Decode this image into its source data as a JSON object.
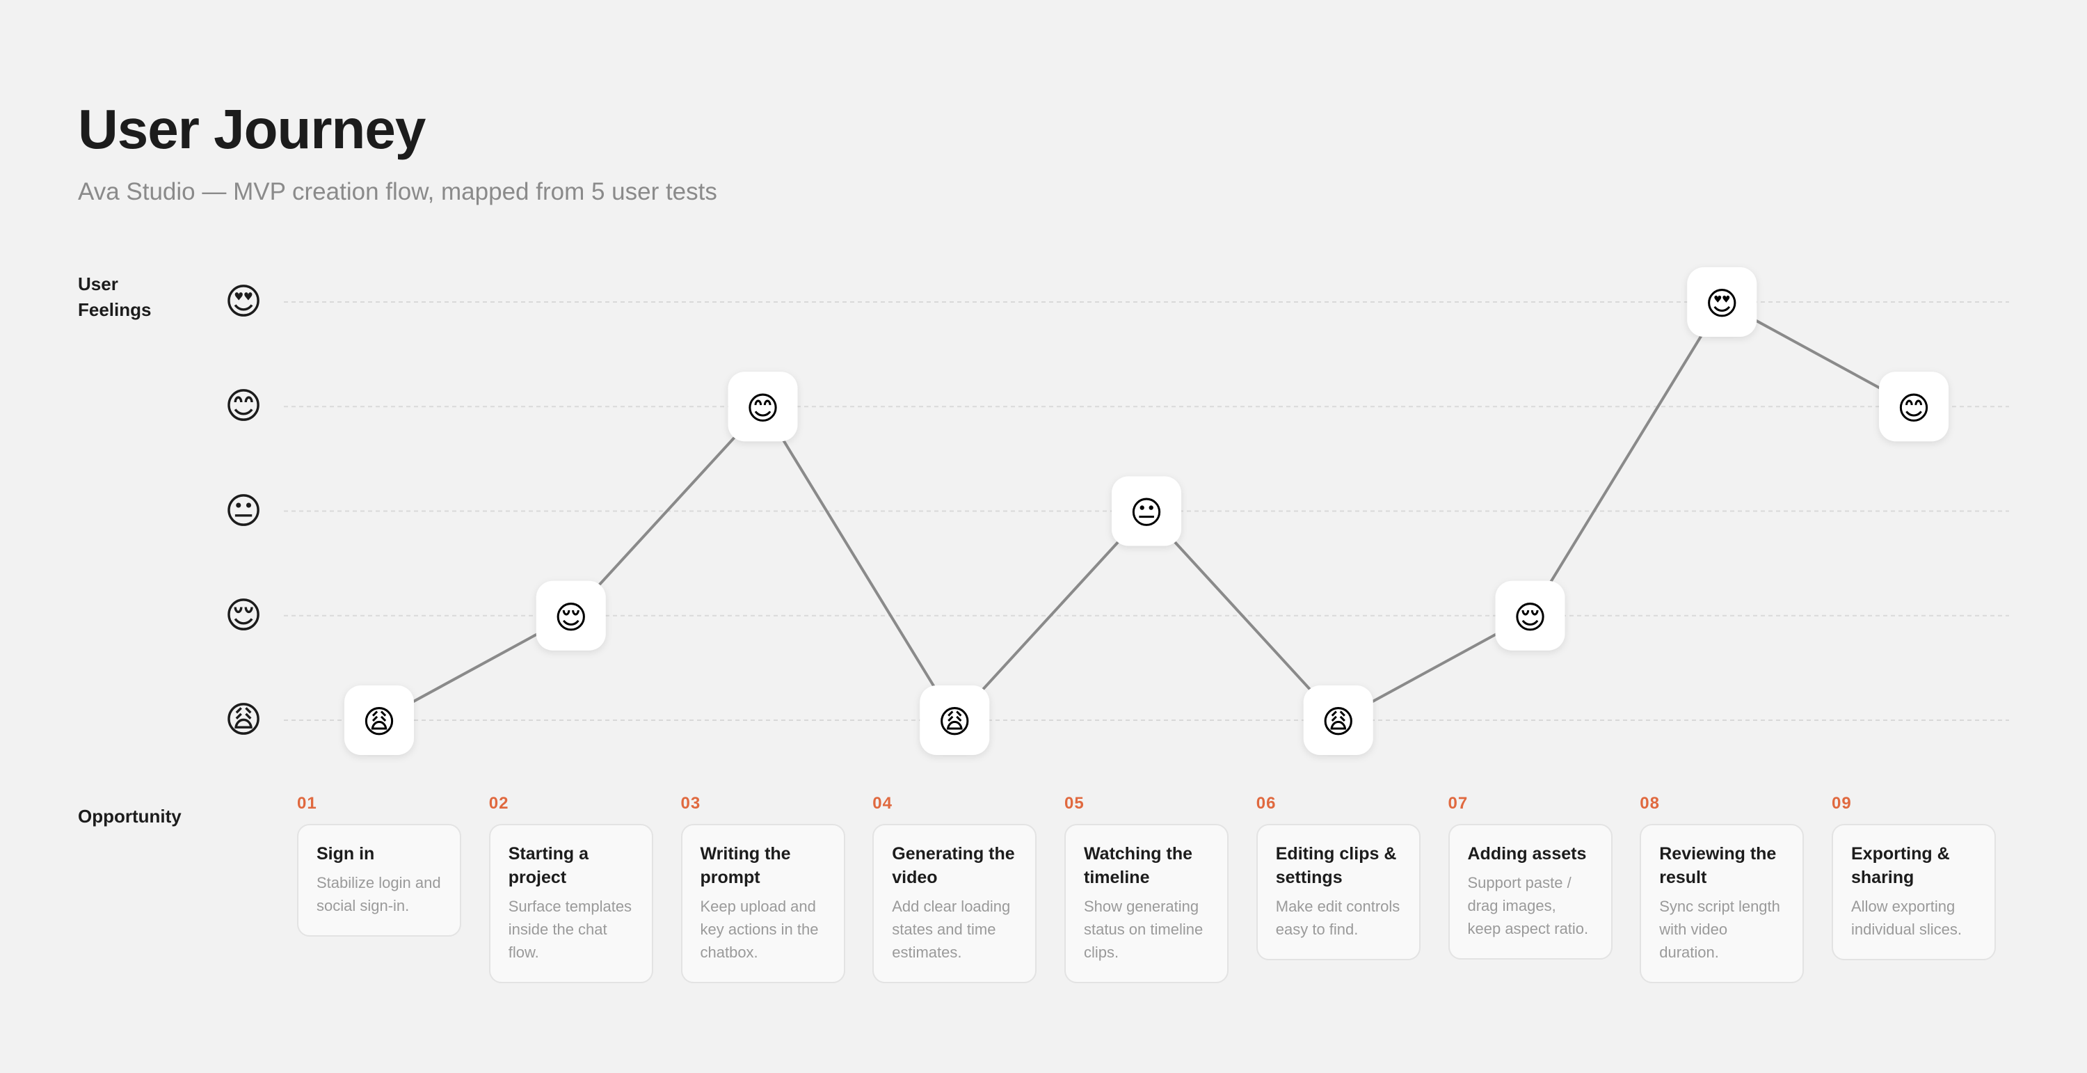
{
  "header": {
    "title": "User Journey",
    "subtitle": "Ava Studio — MVP creation flow, mapped from 5 user tests"
  },
  "labels": {
    "feelings": "User Feelings",
    "opportunity": "Opportunity"
  },
  "feeling_scale": [
    {
      "level": 5,
      "emoji": "😍",
      "icon": "heart-eyes-face-icon"
    },
    {
      "level": 4,
      "emoji": "😊",
      "icon": "smiling-face-icon"
    },
    {
      "level": 3,
      "emoji": "😐",
      "icon": "neutral-face-icon"
    },
    {
      "level": 2,
      "emoji": "😌",
      "icon": "relieved-face-icon"
    },
    {
      "level": 1,
      "emoji": "😩",
      "icon": "weary-face-icon"
    }
  ],
  "chart_data": {
    "type": "line",
    "y_range": [
      1,
      5
    ],
    "grid": true,
    "steps": [
      {
        "num": "01",
        "title": "Sign in",
        "desc": "Stabilize login and social sign-in.",
        "feeling": 1
      },
      {
        "num": "02",
        "title": "Starting a project",
        "desc": "Surface templates inside the chat flow.",
        "feeling": 2
      },
      {
        "num": "03",
        "title": "Writing the prompt",
        "desc": "Keep upload and key actions in the chatbox.",
        "feeling": 4
      },
      {
        "num": "04",
        "title": "Generating the video",
        "desc": "Add clear loading states and time estimates.",
        "feeling": 1
      },
      {
        "num": "05",
        "title": "Watching the timeline",
        "desc": "Show generating status on timeline clips.",
        "feeling": 3
      },
      {
        "num": "06",
        "title": "Editing clips & settings",
        "desc": "Make edit controls easy to find.",
        "feeling": 1
      },
      {
        "num": "07",
        "title": "Adding assets",
        "desc": "Support paste / drag images, keep aspect ratio.",
        "feeling": 2
      },
      {
        "num": "08",
        "title": "Reviewing the result",
        "desc": "Sync script length with video duration.",
        "feeling": 5
      },
      {
        "num": "09",
        "title": "Exporting & sharing",
        "desc": "Allow exporting individual slices.",
        "feeling": 4
      }
    ]
  }
}
